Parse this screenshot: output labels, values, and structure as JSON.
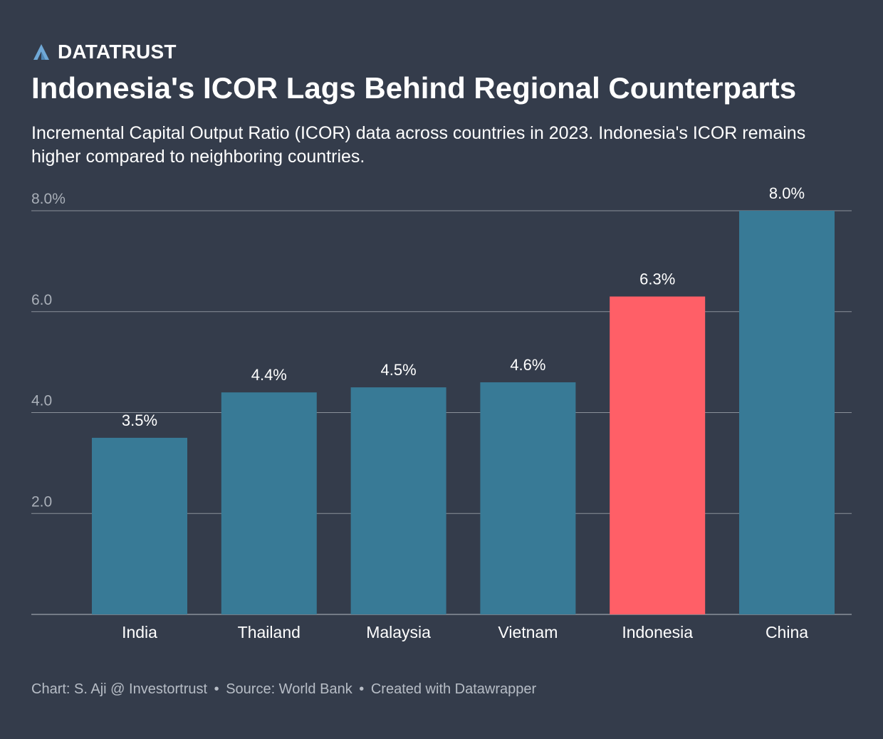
{
  "brand": {
    "name": "DATATRUST",
    "logo_icon": "datatrust-a-icon",
    "logo_color": "#6fa8d6"
  },
  "title": "Indonesia's ICOR Lags Behind Regional Counterparts",
  "subtitle": "Incremental Capital Output Ratio (ICOR) data across countries in 2023. Indonesia's ICOR remains higher compared to neighboring countries.",
  "footer": {
    "chart_credit": "Chart: S. Aji @ Investortrust",
    "source": "Source: World Bank",
    "created_with": "Created with Datawrapper",
    "separator": "•"
  },
  "chart_data": {
    "type": "bar",
    "categories": [
      "India",
      "Thailand",
      "Malaysia",
      "Vietnam",
      "Indonesia",
      "China"
    ],
    "values": [
      3.5,
      4.4,
      4.5,
      4.6,
      6.3,
      8.0
    ],
    "data_labels": [
      "3.5%",
      "4.4%",
      "4.5%",
      "4.6%",
      "6.3%",
      "8.0%"
    ],
    "ylim": [
      0,
      8
    ],
    "y_ticks": [
      2,
      4,
      6,
      8
    ],
    "y_tick_labels": [
      "2.0",
      "4.0",
      "6.0",
      "8.0%"
    ],
    "grid": true,
    "colors": {
      "default_bar": "#387a96",
      "highlight_bar": "#ff5f67",
      "gridline": "#8a909a",
      "tick_label": "#a9afb8",
      "category_label": "#ffffff",
      "data_label": "#ffffff"
    },
    "highlight_category": "Indonesia"
  }
}
